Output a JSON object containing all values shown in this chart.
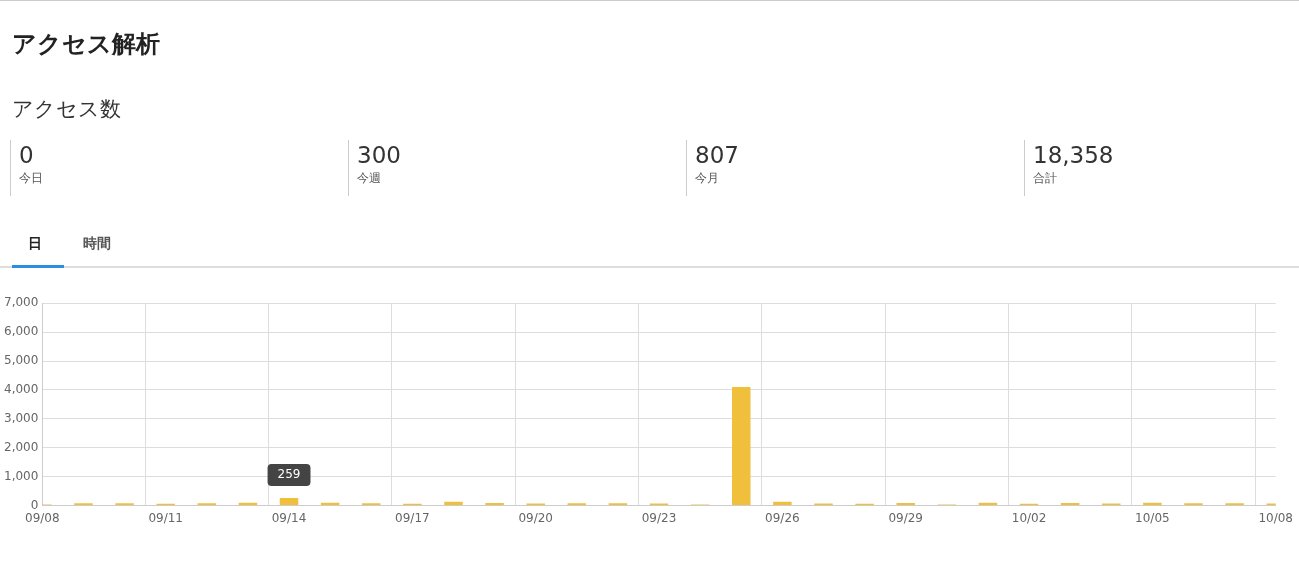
{
  "chart_data": [
    {
      "type": "other",
      "title": "アクセス解析",
      "subtitle": "アクセス数",
      "annotations": [
        "0",
        "今日",
        "300",
        "今週",
        "807",
        "今月",
        "18,358",
        "合計",
        "日",
        "時間"
      ]
    },
    {
      "type": "bar",
      "categories": [
        "09/08",
        null,
        null,
        "09/11",
        null,
        null,
        "09/14",
        null,
        null,
        "09/17",
        null,
        null,
        "09/20",
        null,
        null,
        "09/23",
        null,
        null,
        "09/26",
        null,
        null,
        "09/29",
        null,
        null,
        "10/02",
        null,
        null,
        "10/05",
        null,
        null,
        "10/08"
      ],
      "values": [
        40,
        80,
        80,
        60,
        80,
        100,
        259,
        100,
        80,
        60,
        130,
        90,
        70,
        80,
        80,
        70,
        40,
        4100,
        130,
        70,
        60,
        90,
        40,
        100,
        60,
        90,
        70,
        100,
        80,
        80,
        70
      ],
      "color": "#f0c03c",
      "ylim": [
        0,
        7000
      ],
      "yticks": [
        0,
        {
          "value": 1000,
          "label": "1,000"
        },
        {
          "value": 2000,
          "label": "2,000"
        },
        {
          "value": 3000,
          "label": "3,000"
        },
        {
          "value": 4000,
          "label": "4,000"
        },
        {
          "value": 5000,
          "label": "5,000"
        },
        {
          "value": 6000,
          "label": "6,000"
        },
        {
          "value": 7000,
          "label": "7,000"
        }
      ],
      "grid": true,
      "legend": false,
      "annotations": [
        {
          "text": "259",
          "x": "09/14",
          "y": 259
        }
      ]
    }
  ]
}
